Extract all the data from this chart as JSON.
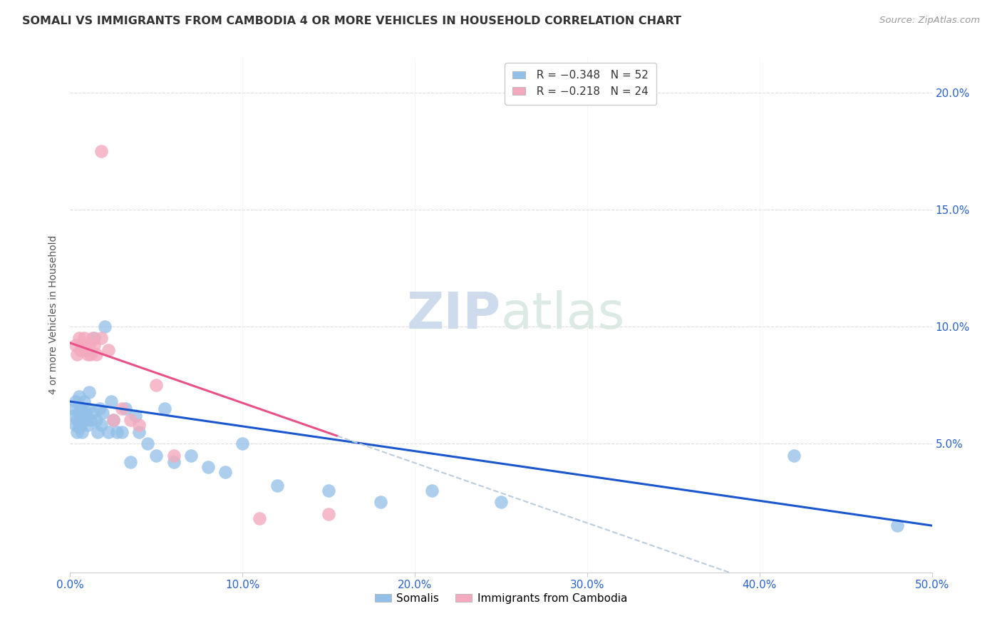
{
  "title": "SOMALI VS IMMIGRANTS FROM CAMBODIA 4 OR MORE VEHICLES IN HOUSEHOLD CORRELATION CHART",
  "source": "Source: ZipAtlas.com",
  "ylabel": "4 or more Vehicles in Household",
  "xlim": [
    0.0,
    0.5
  ],
  "ylim": [
    -0.005,
    0.215
  ],
  "legend_blue_r": "R = −0.348",
  "legend_blue_n": "N = 52",
  "legend_pink_r": "R = −0.218",
  "legend_pink_n": "N = 24",
  "legend_label_blue": "Somalis",
  "legend_label_pink": "Immigrants from Cambodia",
  "blue_color": "#92C0E8",
  "pink_color": "#F4AABE",
  "trendline_blue": "#1A56CC",
  "trendline_pink": "#E8508A",
  "trendline_dashed_color": "#BBCCDD",
  "watermark_zip": "ZIP",
  "watermark_atlas": "atlas",
  "somali_x": [
    0.001,
    0.002,
    0.003,
    0.003,
    0.004,
    0.004,
    0.005,
    0.005,
    0.005,
    0.006,
    0.006,
    0.007,
    0.007,
    0.008,
    0.008,
    0.009,
    0.01,
    0.01,
    0.011,
    0.012,
    0.013,
    0.014,
    0.015,
    0.016,
    0.017,
    0.018,
    0.019,
    0.02,
    0.022,
    0.024,
    0.025,
    0.027,
    0.03,
    0.032,
    0.035,
    0.038,
    0.04,
    0.045,
    0.05,
    0.055,
    0.06,
    0.07,
    0.08,
    0.09,
    0.1,
    0.12,
    0.15,
    0.18,
    0.21,
    0.25,
    0.42,
    0.48
  ],
  "somali_y": [
    0.065,
    0.062,
    0.058,
    0.068,
    0.055,
    0.06,
    0.063,
    0.07,
    0.057,
    0.065,
    0.058,
    0.062,
    0.055,
    0.068,
    0.06,
    0.063,
    0.065,
    0.058,
    0.072,
    0.06,
    0.063,
    0.095,
    0.06,
    0.055,
    0.065,
    0.058,
    0.063,
    0.1,
    0.055,
    0.068,
    0.06,
    0.055,
    0.055,
    0.065,
    0.042,
    0.062,
    0.055,
    0.05,
    0.045,
    0.065,
    0.042,
    0.045,
    0.04,
    0.038,
    0.05,
    0.032,
    0.03,
    0.025,
    0.03,
    0.025,
    0.045,
    0.015
  ],
  "cambodia_x": [
    0.003,
    0.004,
    0.005,
    0.006,
    0.007,
    0.008,
    0.009,
    0.01,
    0.011,
    0.012,
    0.013,
    0.014,
    0.015,
    0.018,
    0.022,
    0.025,
    0.03,
    0.035,
    0.04,
    0.05,
    0.06,
    0.11,
    0.15,
    0.018
  ],
  "cambodia_y": [
    0.092,
    0.088,
    0.095,
    0.09,
    0.092,
    0.095,
    0.09,
    0.088,
    0.092,
    0.088,
    0.095,
    0.092,
    0.088,
    0.095,
    0.09,
    0.06,
    0.065,
    0.06,
    0.058,
    0.075,
    0.045,
    0.018,
    0.02,
    0.175
  ]
}
